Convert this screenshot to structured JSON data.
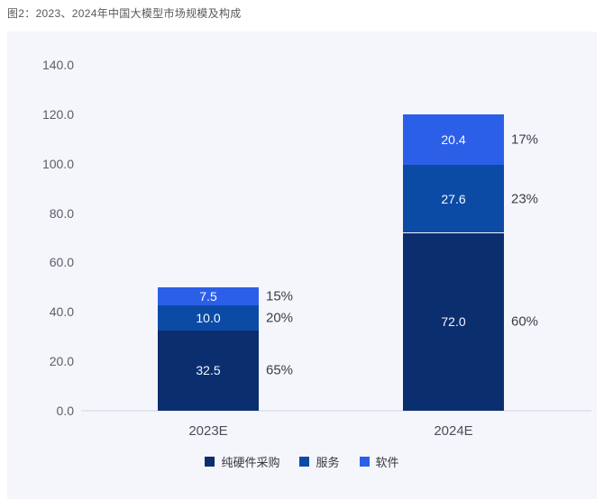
{
  "title": "图2：2023、2024年中国大模型市场规模及构成",
  "colors": {
    "page_bg": "#ffffff",
    "panel_bg": "#f4f6fb",
    "axis_line": "#e2e6ec",
    "hardware": "#0b2e6f",
    "services": "#0b4ba5",
    "software": "#2c5fe8",
    "bar_value_text": "#f5f8ff",
    "tick_text": "#5a5f66",
    "percent_text": "#3a3f46"
  },
  "chart_data": {
    "type": "bar",
    "stacked": true,
    "title": "图2：2023、2024年中国大模型市场规模及构成",
    "categories": [
      "2023E",
      "2024E"
    ],
    "series": [
      {
        "name": "纯硬件采购",
        "color": "#0b2e6f",
        "values": [
          32.5,
          72.0
        ],
        "value_labels": [
          "32.5",
          "72.0"
        ],
        "percent_labels": [
          "65%",
          "60%"
        ]
      },
      {
        "name": "服务",
        "color": "#0b4ba5",
        "values": [
          10.0,
          27.6
        ],
        "value_labels": [
          "10.0",
          "27.6"
        ],
        "percent_labels": [
          "20%",
          "23%"
        ]
      },
      {
        "name": "软件",
        "color": "#2c5fe8",
        "values": [
          7.5,
          20.4
        ],
        "value_labels": [
          "7.5",
          "20.4"
        ],
        "percent_labels": [
          "15%",
          "17%"
        ]
      }
    ],
    "totals": [
      50.0,
      120.0
    ],
    "xlabel": "",
    "ylabel": "",
    "ylim": [
      0,
      140
    ],
    "ytick_labels": [
      "0.0",
      "20.0",
      "40.0",
      "60.0",
      "80.0",
      "100.0",
      "120.0",
      "140.0"
    ],
    "grid": false,
    "legend_position": "bottom"
  }
}
